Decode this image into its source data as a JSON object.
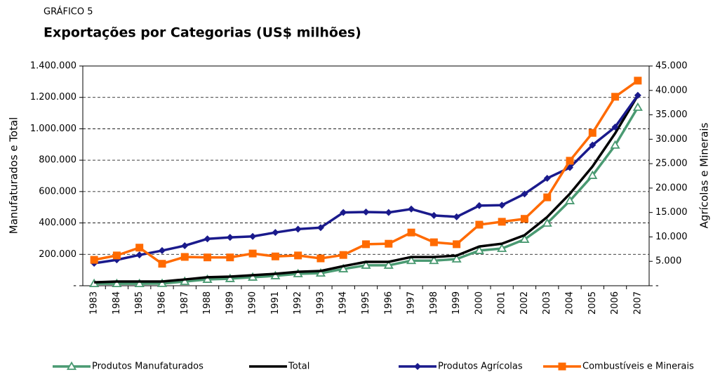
{
  "chart_data": {
    "type": "line",
    "supertitle": "GRÁFICO 5",
    "title": "Exportações por Categorias (US$ milhões)",
    "ylabel": "Manufaturados e Total",
    "y2label": "Agrícolas e Minerais",
    "categories": [
      "1983",
      "1984",
      "1985",
      "1986",
      "1987",
      "1988",
      "1989",
      "1990",
      "1991",
      "1992",
      "1993",
      "1994",
      "1995",
      "1996",
      "1997",
      "1998",
      "1999",
      "2000",
      "2001",
      "2002",
      "2003",
      "2004",
      "2005",
      "2006",
      "2007"
    ],
    "ylim": [
      0,
      1400000
    ],
    "yticks": [
      {
        "value": 0,
        "label": "-"
      },
      {
        "value": 200000,
        "label": "200.000"
      },
      {
        "value": 400000,
        "label": "400.000"
      },
      {
        "value": 600000,
        "label": "600.000"
      },
      {
        "value": 800000,
        "label": "800.000"
      },
      {
        "value": 1000000,
        "label": "1.000.000"
      },
      {
        "value": 1200000,
        "label": "1.200.000"
      },
      {
        "value": 1400000,
        "label": "1.400.000"
      }
    ],
    "y2lim": [
      0,
      45000
    ],
    "y2ticks": [
      {
        "value": 0,
        "label": "-"
      },
      {
        "value": 5000,
        "label": "5.000"
      },
      {
        "value": 10000,
        "label": "10.000"
      },
      {
        "value": 15000,
        "label": "15.000"
      },
      {
        "value": 20000,
        "label": "20.000"
      },
      {
        "value": 25000,
        "label": "25.000"
      },
      {
        "value": 30000,
        "label": "30.000"
      },
      {
        "value": 35000,
        "label": "35.000"
      },
      {
        "value": 40000,
        "label": "40.000"
      },
      {
        "value": 45000,
        "label": "45.000"
      }
    ],
    "grid": true,
    "legend": "bottom",
    "series": [
      {
        "name": "Produtos Manufaturados",
        "color": "#4a9a72",
        "marker": "triangle",
        "axis": "y",
        "values": [
          13000,
          13000,
          13000,
          14000,
          27000,
          40000,
          45000,
          54000,
          63000,
          76000,
          80000,
          107000,
          130000,
          130000,
          160000,
          160000,
          170000,
          224000,
          237000,
          295000,
          398000,
          541000,
          702000,
          895000,
          1136000
        ]
      },
      {
        "name": "Total",
        "color": "#000000",
        "marker": "none",
        "axis": "y",
        "values": [
          22000,
          27000,
          27000,
          27000,
          40000,
          54000,
          58000,
          67000,
          76000,
          89000,
          94000,
          125000,
          152000,
          152000,
          183000,
          183000,
          192000,
          250000,
          268000,
          322000,
          438000,
          586000,
          760000,
          971000,
          1212000
        ]
      },
      {
        "name": "Produtos Agrícolas",
        "color": "#1a1a8c",
        "marker": "diamond",
        "axis": "y2",
        "values": [
          4600,
          5300,
          6300,
          7200,
          8200,
          9600,
          9900,
          10100,
          10900,
          11600,
          11900,
          15000,
          15100,
          15000,
          15700,
          14400,
          14100,
          16400,
          16500,
          18800,
          22000,
          24200,
          28800,
          32500,
          39000
        ]
      },
      {
        "name": "Combustíveis e Minerais",
        "color": "#ff6a00",
        "marker": "square",
        "axis": "y2",
        "values": [
          5300,
          6200,
          7800,
          4500,
          5900,
          5800,
          5800,
          6600,
          6000,
          6200,
          5600,
          6300,
          8500,
          8600,
          10900,
          8900,
          8500,
          12500,
          13100,
          13700,
          18100,
          25600,
          31300,
          38700,
          42000
        ]
      }
    ]
  }
}
